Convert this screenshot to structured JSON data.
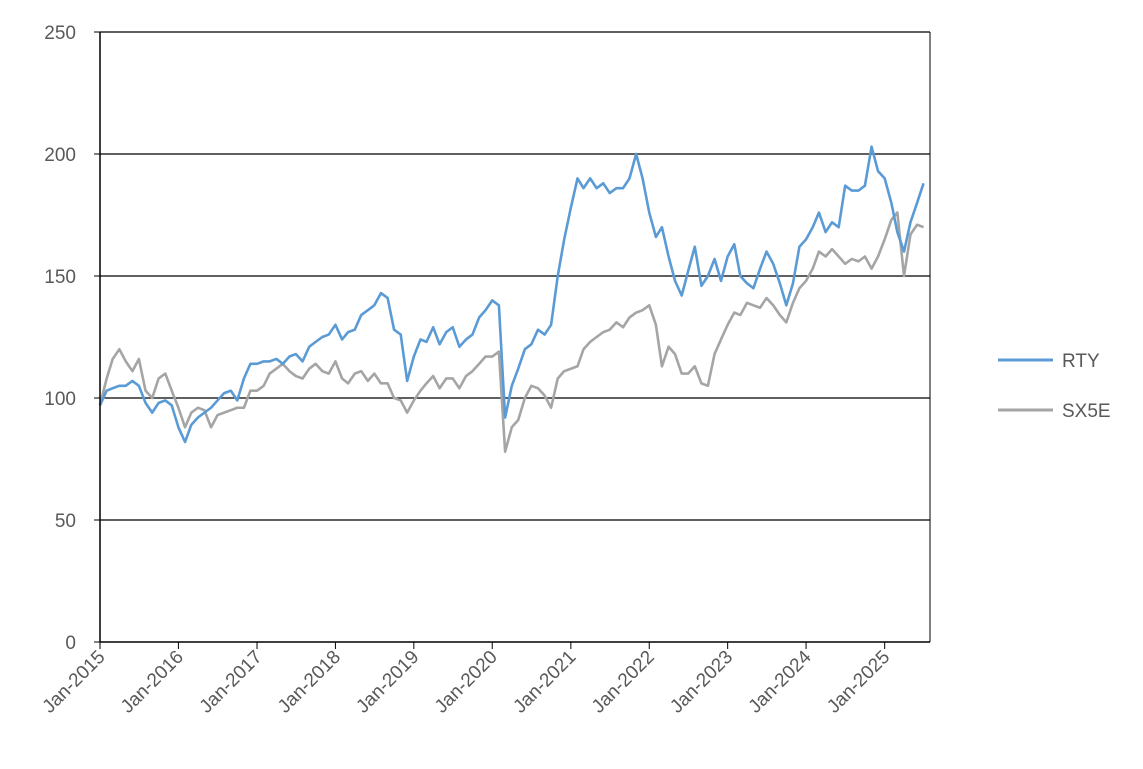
{
  "chart_data": {
    "type": "line",
    "title": "",
    "xlabel": "",
    "ylabel": "",
    "ylim": [
      0,
      250
    ],
    "xlim": [
      "2015-01-01",
      "2025-07-31"
    ],
    "yticks": [
      "0",
      "50",
      "100",
      "150",
      "200",
      "250"
    ],
    "xticks": [
      "Jan-2015",
      "Jan-2016",
      "Jan-2017",
      "Jan-2018",
      "Jan-2019",
      "Jan-2020",
      "Jan-2021",
      "Jan-2022",
      "Jan-2023",
      "Jan-2024",
      "Jan-2025"
    ],
    "grid": "horizontal",
    "legend": "right",
    "series": [
      {
        "name": "RTY",
        "color": "#5B9BD5",
        "points": [
          [
            "2015-01-01",
            97
          ],
          [
            "2015-02-01",
            103
          ],
          [
            "2015-03-01",
            104
          ],
          [
            "2015-04-01",
            105
          ],
          [
            "2015-05-01",
            105
          ],
          [
            "2015-06-01",
            107
          ],
          [
            "2015-07-01",
            105
          ],
          [
            "2015-08-01",
            98
          ],
          [
            "2015-09-01",
            94
          ],
          [
            "2015-10-01",
            98
          ],
          [
            "2015-11-01",
            99
          ],
          [
            "2015-12-01",
            97
          ],
          [
            "2016-01-01",
            88
          ],
          [
            "2016-02-01",
            82
          ],
          [
            "2016-03-01",
            89
          ],
          [
            "2016-04-01",
            92
          ],
          [
            "2016-05-01",
            94
          ],
          [
            "2016-06-01",
            96
          ],
          [
            "2016-07-01",
            99
          ],
          [
            "2016-08-01",
            102
          ],
          [
            "2016-09-01",
            103
          ],
          [
            "2016-10-01",
            99
          ],
          [
            "2016-11-01",
            108
          ],
          [
            "2016-12-01",
            114
          ],
          [
            "2017-01-01",
            114
          ],
          [
            "2017-02-01",
            115
          ],
          [
            "2017-03-01",
            115
          ],
          [
            "2017-04-01",
            116
          ],
          [
            "2017-05-01",
            114
          ],
          [
            "2017-06-01",
            117
          ],
          [
            "2017-07-01",
            118
          ],
          [
            "2017-08-01",
            115
          ],
          [
            "2017-09-01",
            121
          ],
          [
            "2017-10-01",
            123
          ],
          [
            "2017-11-01",
            125
          ],
          [
            "2017-12-01",
            126
          ],
          [
            "2018-01-01",
            130
          ],
          [
            "2018-02-01",
            124
          ],
          [
            "2018-03-01",
            127
          ],
          [
            "2018-04-01",
            128
          ],
          [
            "2018-05-01",
            134
          ],
          [
            "2018-06-01",
            136
          ],
          [
            "2018-07-01",
            138
          ],
          [
            "2018-08-01",
            143
          ],
          [
            "2018-09-01",
            141
          ],
          [
            "2018-10-01",
            128
          ],
          [
            "2018-11-01",
            126
          ],
          [
            "2018-12-01",
            107
          ],
          [
            "2019-01-01",
            117
          ],
          [
            "2019-02-01",
            124
          ],
          [
            "2019-03-01",
            123
          ],
          [
            "2019-04-01",
            129
          ],
          [
            "2019-05-01",
            122
          ],
          [
            "2019-06-01",
            127
          ],
          [
            "2019-07-01",
            129
          ],
          [
            "2019-08-01",
            121
          ],
          [
            "2019-09-01",
            124
          ],
          [
            "2019-10-01",
            126
          ],
          [
            "2019-11-01",
            133
          ],
          [
            "2019-12-01",
            136
          ],
          [
            "2020-01-01",
            140
          ],
          [
            "2020-02-01",
            138
          ],
          [
            "2020-03-01",
            92
          ],
          [
            "2020-04-01",
            105
          ],
          [
            "2020-05-01",
            112
          ],
          [
            "2020-06-01",
            120
          ],
          [
            "2020-07-01",
            122
          ],
          [
            "2020-08-01",
            128
          ],
          [
            "2020-09-01",
            126
          ],
          [
            "2020-10-01",
            130
          ],
          [
            "2020-11-01",
            150
          ],
          [
            "2020-12-01",
            165
          ],
          [
            "2021-01-01",
            178
          ],
          [
            "2021-02-01",
            190
          ],
          [
            "2021-03-01",
            186
          ],
          [
            "2021-04-01",
            190
          ],
          [
            "2021-05-01",
            186
          ],
          [
            "2021-06-01",
            188
          ],
          [
            "2021-07-01",
            184
          ],
          [
            "2021-08-01",
            186
          ],
          [
            "2021-09-01",
            186
          ],
          [
            "2021-10-01",
            190
          ],
          [
            "2021-11-01",
            200
          ],
          [
            "2021-12-01",
            190
          ],
          [
            "2022-01-01",
            176
          ],
          [
            "2022-02-01",
            166
          ],
          [
            "2022-03-01",
            170
          ],
          [
            "2022-04-01",
            158
          ],
          [
            "2022-05-01",
            148
          ],
          [
            "2022-06-01",
            142
          ],
          [
            "2022-07-01",
            152
          ],
          [
            "2022-08-01",
            162
          ],
          [
            "2022-09-01",
            146
          ],
          [
            "2022-10-01",
            150
          ],
          [
            "2022-11-01",
            157
          ],
          [
            "2022-12-01",
            148
          ],
          [
            "2023-01-01",
            158
          ],
          [
            "2023-02-01",
            163
          ],
          [
            "2023-03-01",
            150
          ],
          [
            "2023-04-01",
            147
          ],
          [
            "2023-05-01",
            145
          ],
          [
            "2023-06-01",
            153
          ],
          [
            "2023-07-01",
            160
          ],
          [
            "2023-08-01",
            155
          ],
          [
            "2023-09-01",
            147
          ],
          [
            "2023-10-01",
            138
          ],
          [
            "2023-11-01",
            147
          ],
          [
            "2023-12-01",
            162
          ],
          [
            "2024-01-01",
            165
          ],
          [
            "2024-02-01",
            170
          ],
          [
            "2024-03-01",
            176
          ],
          [
            "2024-04-01",
            168
          ],
          [
            "2024-05-01",
            172
          ],
          [
            "2024-06-01",
            170
          ],
          [
            "2024-07-01",
            187
          ],
          [
            "2024-08-01",
            185
          ],
          [
            "2024-09-01",
            185
          ],
          [
            "2024-10-01",
            187
          ],
          [
            "2024-11-01",
            203
          ],
          [
            "2024-12-01",
            193
          ],
          [
            "2025-01-01",
            190
          ],
          [
            "2025-02-01",
            180
          ],
          [
            "2025-03-01",
            168
          ],
          [
            "2025-04-01",
            160
          ],
          [
            "2025-05-01",
            172
          ],
          [
            "2025-06-01",
            180
          ],
          [
            "2025-07-01",
            188
          ]
        ]
      },
      {
        "name": "SX5E",
        "color": "#A5A5A5",
        "points": [
          [
            "2015-01-01",
            97
          ],
          [
            "2015-02-01",
            108
          ],
          [
            "2015-03-01",
            116
          ],
          [
            "2015-04-01",
            120
          ],
          [
            "2015-05-01",
            115
          ],
          [
            "2015-06-01",
            111
          ],
          [
            "2015-07-01",
            116
          ],
          [
            "2015-08-01",
            103
          ],
          [
            "2015-09-01",
            100
          ],
          [
            "2015-10-01",
            108
          ],
          [
            "2015-11-01",
            110
          ],
          [
            "2015-12-01",
            103
          ],
          [
            "2016-01-01",
            96
          ],
          [
            "2016-02-01",
            88
          ],
          [
            "2016-03-01",
            94
          ],
          [
            "2016-04-01",
            96
          ],
          [
            "2016-05-01",
            95
          ],
          [
            "2016-06-01",
            88
          ],
          [
            "2016-07-01",
            93
          ],
          [
            "2016-08-01",
            94
          ],
          [
            "2016-09-01",
            95
          ],
          [
            "2016-10-01",
            96
          ],
          [
            "2016-11-01",
            96
          ],
          [
            "2016-12-01",
            103
          ],
          [
            "2017-01-01",
            103
          ],
          [
            "2017-02-01",
            105
          ],
          [
            "2017-03-01",
            110
          ],
          [
            "2017-04-01",
            112
          ],
          [
            "2017-05-01",
            114
          ],
          [
            "2017-06-01",
            111
          ],
          [
            "2017-07-01",
            109
          ],
          [
            "2017-08-01",
            108
          ],
          [
            "2017-09-01",
            112
          ],
          [
            "2017-10-01",
            114
          ],
          [
            "2017-11-01",
            111
          ],
          [
            "2017-12-01",
            110
          ],
          [
            "2018-01-01",
            115
          ],
          [
            "2018-02-01",
            108
          ],
          [
            "2018-03-01",
            106
          ],
          [
            "2018-04-01",
            110
          ],
          [
            "2018-05-01",
            111
          ],
          [
            "2018-06-01",
            107
          ],
          [
            "2018-07-01",
            110
          ],
          [
            "2018-08-01",
            106
          ],
          [
            "2018-09-01",
            106
          ],
          [
            "2018-10-01",
            100
          ],
          [
            "2018-11-01",
            99
          ],
          [
            "2018-12-01",
            94
          ],
          [
            "2019-01-01",
            99
          ],
          [
            "2019-02-01",
            103
          ],
          [
            "2019-03-01",
            106
          ],
          [
            "2019-04-01",
            109
          ],
          [
            "2019-05-01",
            104
          ],
          [
            "2019-06-01",
            108
          ],
          [
            "2019-07-01",
            108
          ],
          [
            "2019-08-01",
            104
          ],
          [
            "2019-09-01",
            109
          ],
          [
            "2019-10-01",
            111
          ],
          [
            "2019-11-01",
            114
          ],
          [
            "2019-12-01",
            117
          ],
          [
            "2020-01-01",
            117
          ],
          [
            "2020-02-01",
            119
          ],
          [
            "2020-03-01",
            78
          ],
          [
            "2020-04-01",
            88
          ],
          [
            "2020-05-01",
            91
          ],
          [
            "2020-06-01",
            100
          ],
          [
            "2020-07-01",
            105
          ],
          [
            "2020-08-01",
            104
          ],
          [
            "2020-09-01",
            101
          ],
          [
            "2020-10-01",
            96
          ],
          [
            "2020-11-01",
            108
          ],
          [
            "2020-12-01",
            111
          ],
          [
            "2021-01-01",
            112
          ],
          [
            "2021-02-01",
            113
          ],
          [
            "2021-03-01",
            120
          ],
          [
            "2021-04-01",
            123
          ],
          [
            "2021-05-01",
            125
          ],
          [
            "2021-06-01",
            127
          ],
          [
            "2021-07-01",
            128
          ],
          [
            "2021-08-01",
            131
          ],
          [
            "2021-09-01",
            129
          ],
          [
            "2021-10-01",
            133
          ],
          [
            "2021-11-01",
            135
          ],
          [
            "2021-12-01",
            136
          ],
          [
            "2022-01-01",
            138
          ],
          [
            "2022-02-01",
            130
          ],
          [
            "2022-03-01",
            113
          ],
          [
            "2022-04-01",
            121
          ],
          [
            "2022-05-01",
            118
          ],
          [
            "2022-06-01",
            110
          ],
          [
            "2022-07-01",
            110
          ],
          [
            "2022-08-01",
            113
          ],
          [
            "2022-09-01",
            106
          ],
          [
            "2022-10-01",
            105
          ],
          [
            "2022-11-01",
            118
          ],
          [
            "2022-12-01",
            124
          ],
          [
            "2023-01-01",
            130
          ],
          [
            "2023-02-01",
            135
          ],
          [
            "2023-03-01",
            134
          ],
          [
            "2023-04-01",
            139
          ],
          [
            "2023-05-01",
            138
          ],
          [
            "2023-06-01",
            137
          ],
          [
            "2023-07-01",
            141
          ],
          [
            "2023-08-01",
            138
          ],
          [
            "2023-09-01",
            134
          ],
          [
            "2023-10-01",
            131
          ],
          [
            "2023-11-01",
            139
          ],
          [
            "2023-12-01",
            145
          ],
          [
            "2024-01-01",
            148
          ],
          [
            "2024-02-01",
            153
          ],
          [
            "2024-03-01",
            160
          ],
          [
            "2024-04-01",
            158
          ],
          [
            "2024-05-01",
            161
          ],
          [
            "2024-06-01",
            158
          ],
          [
            "2024-07-01",
            155
          ],
          [
            "2024-08-01",
            157
          ],
          [
            "2024-09-01",
            156
          ],
          [
            "2024-10-01",
            158
          ],
          [
            "2024-11-01",
            153
          ],
          [
            "2024-12-01",
            158
          ],
          [
            "2025-01-01",
            165
          ],
          [
            "2025-02-01",
            173
          ],
          [
            "2025-03-01",
            176
          ],
          [
            "2025-04-01",
            150
          ],
          [
            "2025-05-01",
            167
          ],
          [
            "2025-06-01",
            171
          ],
          [
            "2025-07-01",
            170
          ]
        ]
      }
    ]
  }
}
